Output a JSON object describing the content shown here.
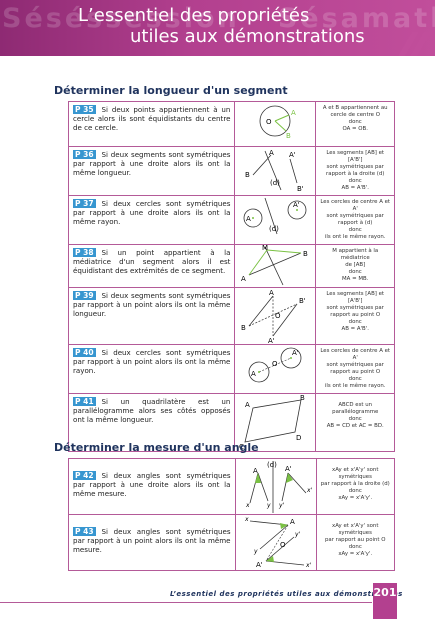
{
  "header": {
    "ghost_text": "Séséssession · Sésamath",
    "title_line1": "L’essentiel des propriétés",
    "title_line2": "utiles aux démonstrations"
  },
  "sections": [
    {
      "title": "Déterminer la longueur d'un segment",
      "rows": [
        {
          "tag": "P 35",
          "text": "Si deux points appartiennent à un cercle alors ils sont équidistants du centre de ce cercle.",
          "note": [
            "A et B appartiennent au",
            "cercle de centre O",
            "donc",
            "OA = OB."
          ],
          "labels": {
            "o": "O",
            "a": "A",
            "b": "B"
          }
        },
        {
          "tag": "P 36",
          "text": "Si deux segments sont symétriques par rapport à une droite alors ils ont la même longueur.",
          "note": [
            "Les segments [AB] et [A'B']",
            "sont symétriques par",
            "rapport à la droite (d)",
            "donc",
            "AB = A'B'."
          ],
          "labels": {
            "a": "A",
            "a2": "A'",
            "b": "B",
            "b2": "B'",
            "d": "(d)"
          }
        },
        {
          "tag": "P 37",
          "text": "Si deux cercles sont symétriques par rapport à une droite alors ils ont la même rayon.",
          "note": [
            "Les cercles de centre A et A'",
            "sont symétriques par",
            "rapport à (d)",
            "donc",
            "ils ont le même rayon."
          ],
          "labels": {
            "a": "A",
            "a2": "A'",
            "d": "(d)"
          }
        },
        {
          "tag": "P 38",
          "text": "Si un point appartient à la médiatrice d'un segment alors il est équidistant des extrémités de ce segment.",
          "note": [
            "M appartient à la médiatrice",
            "de [AB]",
            "donc",
            "MA = MB."
          ],
          "labels": {
            "m": "M",
            "a": "A",
            "b": "B"
          }
        },
        {
          "tag": "P 39",
          "text": "Si deux segments sont symétriques par rapport à un point alors ils ont la même longueur.",
          "note": [
            "Les segments [AB] et [A'B']",
            "sont symétriques par",
            "rapport au point O",
            "donc",
            "AB = A'B'."
          ],
          "labels": {
            "a": "A",
            "b2": "B'",
            "o": "O",
            "b": "B",
            "a2": "A'"
          }
        },
        {
          "tag": "P 40",
          "text": "Si deux cercles sont symétriques par rapport à un point alors ils ont la même rayon.",
          "note": [
            "Les cercles de centre A et A'",
            "sont symétriques par",
            "rapport au point O",
            "donc",
            "ils ont le même rayon."
          ],
          "labels": {
            "a": "A",
            "o": "O",
            "a2": "A'"
          }
        },
        {
          "tag": "P 41",
          "text": "Si un quadrilatère est un parallélogramme alors ses côtés opposés ont la même longueur.",
          "note": [
            "ABCD est un",
            "parallélogramme",
            "donc",
            "AB = CD et AC = BD."
          ],
          "labels": {
            "a": "A",
            "b": "B",
            "c": "C",
            "d": "D"
          }
        }
      ]
    },
    {
      "title": "Déterminer la mesure d'un angle",
      "rows": [
        {
          "tag": "P 42",
          "text": "Si deux angles sont symétriques par rapport à une droite alors ils ont la même mesure.",
          "note": [
            "xAy et x'A'y' sont",
            "symétriques",
            "par rapport à la droite (d)",
            "donc",
            "xAy = x'A'y'."
          ],
          "labels": {
            "d": "(d)",
            "a": "A",
            "a2": "A'",
            "x": "x",
            "y": "y",
            "x2": "x'",
            "y2": "y'"
          }
        },
        {
          "tag": "P 43",
          "text": "Si deux angles sont symétriques par rapport à un point alors ils ont la même mesure.",
          "note": [
            "xAy et x'A'y' sont",
            "symétriques",
            "par rapport au point O",
            "donc",
            "xAy = x'A'y'."
          ],
          "labels": {
            "a": "A",
            "o": "O",
            "a2": "A'",
            "x": "x",
            "y": "y",
            "x2": "x'",
            "y2": "y'"
          }
        }
      ]
    }
  ],
  "footer": {
    "text": "L’essentiel des propriétés utiles aux démonstrations",
    "page": "201"
  },
  "colors": {
    "accent": "#b3408f",
    "tag": "#3796d0",
    "title": "#20345e",
    "green": "#7ac143"
  }
}
